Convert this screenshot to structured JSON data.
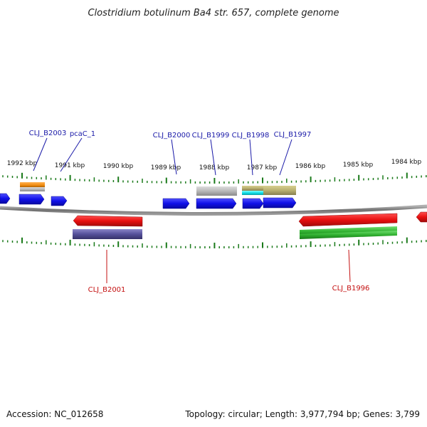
{
  "title": "Clostridium botulinum Ba4 str. 657, complete genome",
  "footer": {
    "accession": "Accession: NC_012658",
    "summary": "Topology: circular; Length: 3,977,794 bp; Genes: 3,799"
  },
  "scale_labels": [
    "1992 kbp",
    "1991 kbp",
    "1990 kbp",
    "1989 kbp",
    "1988 kbp",
    "1987 kbp",
    "1986 kbp",
    "1985 kbp",
    "1984 kbp"
  ],
  "gene_labels": {
    "top": [
      "CLJ_B2003",
      "pcaC_1",
      "CLJ_B2000",
      "CLJ_B1999",
      "CLJ_B1998",
      "CLJ_B1997"
    ],
    "bottom": [
      "CLJ_B2001",
      "CLJ_B1996"
    ]
  },
  "colors": {
    "forward_cds": "#1010e8",
    "reverse_cds": "#e81010",
    "backbone": "#808080",
    "tick": "#1a7a1a",
    "label_blue": "#1a1aa8",
    "label_red": "#c41010",
    "orange_feature": "#f08c10",
    "gray_feature": "#b8b8b8",
    "cyan_feature": "#10e0e8",
    "olive_feature": "#b8b070",
    "purple_feature": "#55509a",
    "green_feature": "#30b030"
  }
}
